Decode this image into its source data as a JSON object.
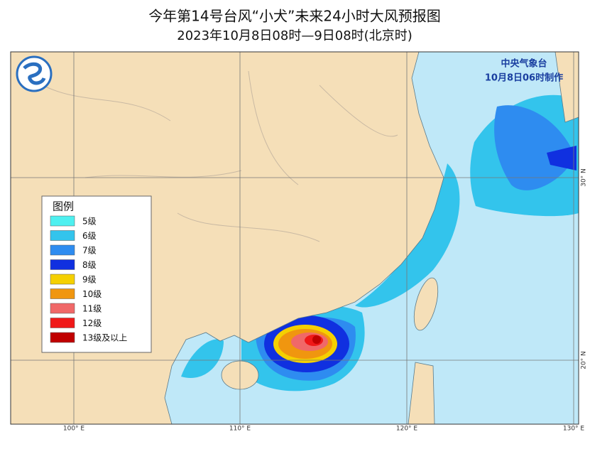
{
  "title": "今年第14号台风“小犬”未来24小时大风预报图",
  "subtitle": "2023年10月8日08时—9日08时(北京时)",
  "agency": "中央气象台",
  "issued": "10月8日06时制作",
  "legend": {
    "title": "图例",
    "items": [
      {
        "label": "5级",
        "color": "#4ef0f0"
      },
      {
        "label": "6级",
        "color": "#33c4ec"
      },
      {
        "label": "7级",
        "color": "#2e8cf0"
      },
      {
        "label": "8级",
        "color": "#1030e0"
      },
      {
        "label": "9级",
        "color": "#f5d000"
      },
      {
        "label": "10级",
        "color": "#f0960f"
      },
      {
        "label": "11级",
        "color": "#f06868"
      },
      {
        "label": "12级",
        "color": "#f01818"
      },
      {
        "label": "13级及以上",
        "color": "#c00000"
      }
    ]
  },
  "axes": {
    "longitude": [
      "100° E",
      "110° E",
      "120° E",
      "130° E"
    ],
    "latitude": [
      "20° N",
      "30° N"
    ]
  }
}
